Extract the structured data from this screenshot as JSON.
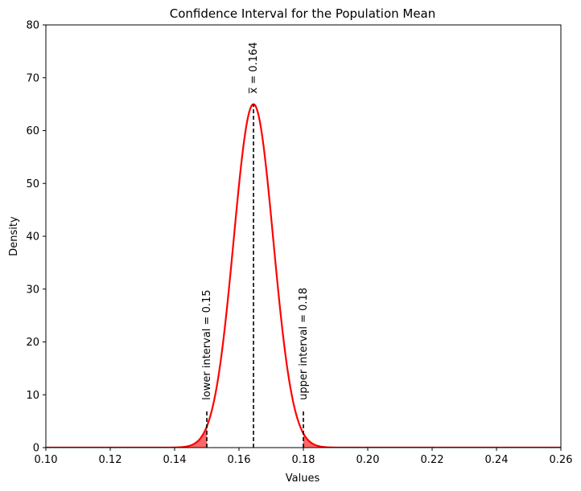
{
  "chart_data": {
    "type": "line",
    "title": "Confidence Interval for the Population Mean",
    "xlabel": "Values",
    "ylabel": "Density",
    "xlim": [
      0.1,
      0.26
    ],
    "ylim": [
      0,
      80
    ],
    "xticks": [
      0.1,
      0.12,
      0.14,
      0.16,
      0.18,
      0.2,
      0.22,
      0.24,
      0.26
    ],
    "xtick_labels": [
      "0.10",
      "0.12",
      "0.14",
      "0.16",
      "0.18",
      "0.20",
      "0.22",
      "0.24",
      "0.26"
    ],
    "yticks": [
      0,
      10,
      20,
      30,
      40,
      50,
      60,
      70,
      80
    ],
    "ytick_labels": [
      "0",
      "10",
      "20",
      "30",
      "40",
      "50",
      "60",
      "70",
      "80"
    ],
    "grid": false,
    "series": [
      {
        "distribution": "normal",
        "mean": 0.1645,
        "sd": 0.00614,
        "peak_density": 65,
        "color": "#ff0000"
      }
    ],
    "shaded_tails": {
      "below": 0.15,
      "above": 0.18,
      "color": "#ff4d4d"
    },
    "vlines": [
      {
        "x": 0.15,
        "ymax": 7,
        "style": "dashed",
        "color": "#000000"
      },
      {
        "x": 0.1645,
        "ymax": 65,
        "style": "dashed",
        "color": "#000000"
      },
      {
        "x": 0.18,
        "ymax": 7,
        "style": "dashed",
        "color": "#000000"
      }
    ],
    "annotations": [
      {
        "text": "lower interval = 0.15",
        "x": 0.15,
        "y": 9
      },
      {
        "text": "x̅ = 0.164",
        "x": 0.1645,
        "y": 67
      },
      {
        "text": "upper interval = 0.18",
        "x": 0.18,
        "y": 9
      }
    ]
  }
}
